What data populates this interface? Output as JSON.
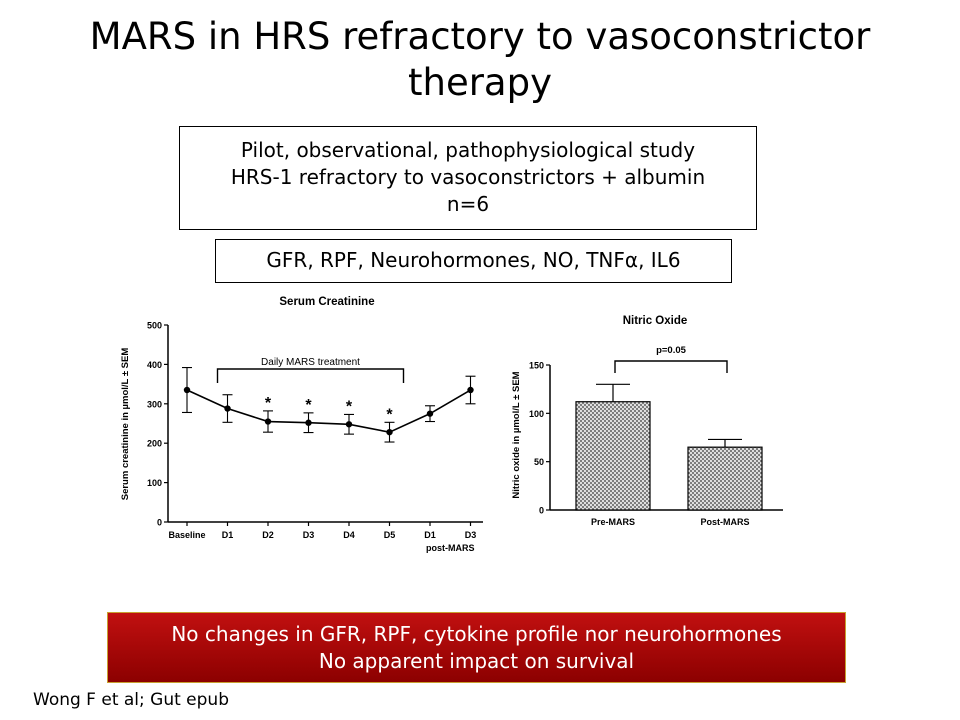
{
  "title_line1": "MARS in HRS refractory to vasoconstrictor",
  "title_line2": "therapy",
  "study": {
    "line1": "Pilot, observational, pathophysiological study",
    "line2": "HRS-1 refractory to vasoconstrictors + albumin",
    "line3": "n=6"
  },
  "parameters": "GFR, RPF, Neurohormones, NO, TNFα, IL6",
  "chart_data": [
    {
      "type": "line",
      "title": "Serum Creatinine",
      "ylabel": "Serum creatinine in µmol/L ± SEM",
      "xlabel": "",
      "categories": [
        "Baseline",
        "D1",
        "D2",
        "D3",
        "D4",
        "D5",
        "D1",
        "D3"
      ],
      "x_group_label": "post-MARS",
      "values": [
        335,
        288,
        255,
        252,
        248,
        228,
        275,
        335
      ],
      "errors": [
        57,
        35,
        27,
        25,
        25,
        25,
        20,
        35
      ],
      "significance": [
        "",
        "",
        "*",
        "*",
        "*",
        "*",
        "",
        ""
      ],
      "bracket_label": "Daily MARS treatment",
      "yticks": [
        0,
        100,
        200,
        300,
        400,
        500
      ],
      "ylim": [
        0,
        500
      ]
    },
    {
      "type": "bar",
      "title": "Nitric Oxide",
      "ylabel": "Nitric oxide in µmol/L ± SEM",
      "xlabel": "",
      "categories": [
        "Pre-MARS",
        "Post-MARS"
      ],
      "values": [
        112,
        65
      ],
      "errors": [
        18,
        8
      ],
      "p_value_label": "p=0.05",
      "yticks": [
        0,
        50,
        100,
        150
      ],
      "ylim": [
        0,
        150
      ]
    }
  ],
  "conclusion": {
    "line1": "No changes in GFR, RPF, cytokine profile nor neurohormones",
    "line2": "No apparent impact on survival"
  },
  "citation": "Wong F et al; Gut epub"
}
